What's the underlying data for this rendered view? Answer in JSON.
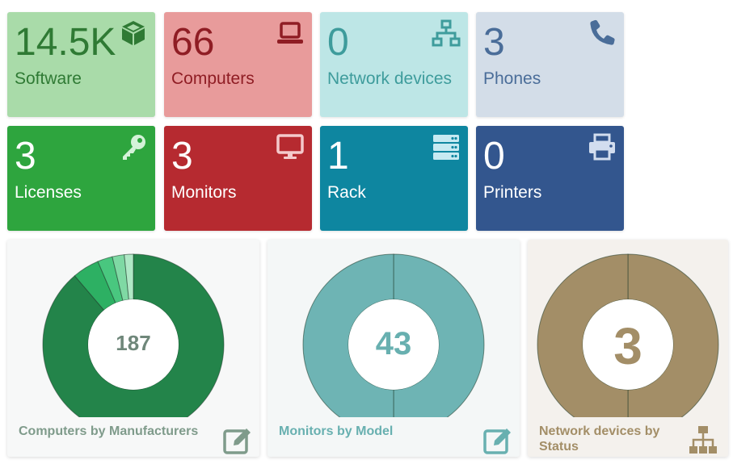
{
  "tiles": [
    {
      "value": "14.5K",
      "label": "Software",
      "icon": "cube-icon"
    },
    {
      "value": "66",
      "label": "Computers",
      "icon": "laptop-icon"
    },
    {
      "value": "0",
      "label": "Network devices",
      "icon": "network-icon"
    },
    {
      "value": "3",
      "label": "Phones",
      "icon": "phone-icon"
    },
    {
      "value": "3",
      "label": "Licenses",
      "icon": "key-icon"
    },
    {
      "value": "3",
      "label": "Monitors",
      "icon": "desktop-icon"
    },
    {
      "value": "1",
      "label": "Rack",
      "icon": "server-icon"
    },
    {
      "value": "0",
      "label": "Printers",
      "icon": "print-icon"
    }
  ],
  "colors": {
    "software_bg": "#a9dba9",
    "software_fg": "#2f7a34",
    "computers_bg": "#e89b9b",
    "computers_fg": "#8f1d24",
    "network_bg": "#bde6e6",
    "network_fg": "#3e9c9c",
    "phones_bg": "#d3dde8",
    "phones_fg": "#4a6d99",
    "licenses_bg": "#2ea53e",
    "monitors_bg": "#b62a30",
    "rack_bg": "#0e86a0",
    "printers_bg": "#33568e",
    "dark_fg": "#ffffff"
  },
  "cards": [
    {
      "title": "Computers by Manufacturers",
      "total": "187",
      "action_icon": "edit-icon"
    },
    {
      "title": "Monitors by Model",
      "total": "43",
      "action_icon": "edit-icon"
    },
    {
      "title": "Network devices by Status",
      "total": "3",
      "action_icon": "sitemap-icon"
    }
  ],
  "chart_data": [
    {
      "type": "pie",
      "title": "Computers by Manufacturers",
      "total": 187,
      "values": [
        166,
        9,
        5,
        4,
        3
      ],
      "colors": [
        "#23844a",
        "#2db063",
        "#49c77f",
        "#7fd9a4",
        "#b0e8c6"
      ]
    },
    {
      "type": "pie",
      "title": "Monitors by Model",
      "total": 43,
      "values": [
        21.5,
        21.5
      ],
      "colors": [
        "#6eb4b4",
        "#6eb4b4"
      ]
    },
    {
      "type": "pie",
      "title": "Network devices by Status",
      "total": 3,
      "values": [
        1.5,
        1.5
      ],
      "colors": [
        "#a38e67",
        "#a38e67"
      ]
    }
  ]
}
